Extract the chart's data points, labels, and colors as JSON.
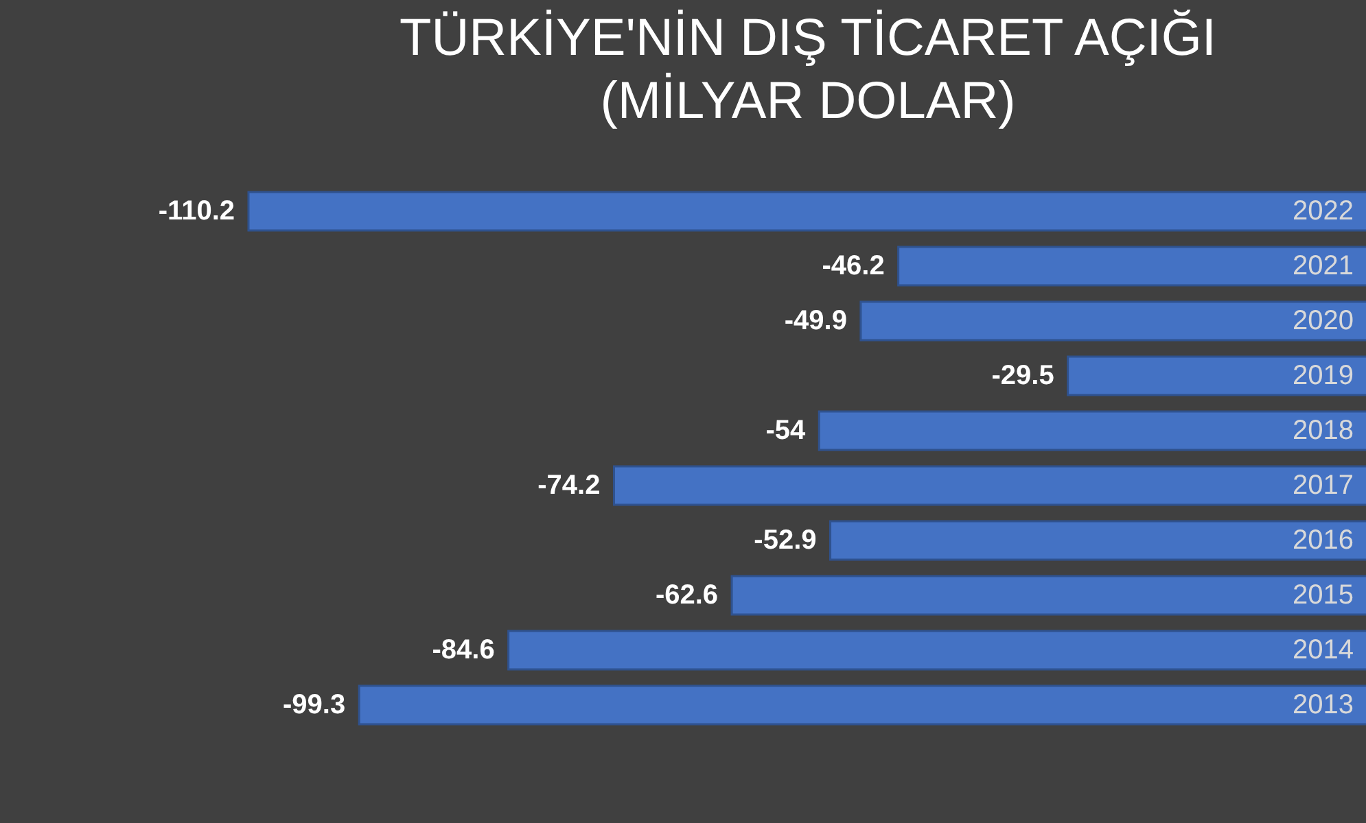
{
  "chart_data": {
    "type": "bar",
    "orientation": "horizontal",
    "title": "TÜRKİYE'NİN DIŞ TİCARET AÇIĞI",
    "subtitle": "(MİLYAR DOLAR)",
    "categories": [
      "2022",
      "2021",
      "2020",
      "2019",
      "2018",
      "2017",
      "2016",
      "2015",
      "2014",
      "2013"
    ],
    "values": [
      -110.2,
      -46.2,
      -49.9,
      -29.5,
      -54,
      -74.2,
      -52.9,
      -62.6,
      -84.6,
      -99.3
    ],
    "color": "#4472c4",
    "data_labels": true
  }
}
